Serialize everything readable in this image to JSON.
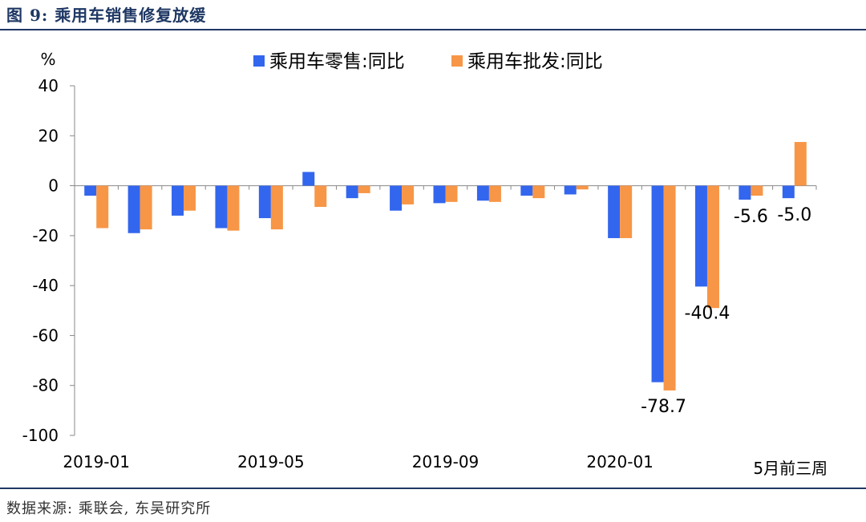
{
  "figure_title": "图 9: 乘用车销售修复放缓",
  "source_note": "数据来源: 乘联会, 东吴研究所",
  "colors": {
    "retail": "#3366ee",
    "wholesale": "#f79646",
    "heading": "#1f3864"
  },
  "chart_data": {
    "type": "bar",
    "title": "",
    "unit_label": "%",
    "xlabel": "",
    "ylabel": "",
    "ylim": [
      -100,
      40
    ],
    "yticks": [
      40,
      20,
      0,
      -20,
      -40,
      -60,
      -80,
      -100
    ],
    "grid": false,
    "legend_position": "top-center",
    "categories": [
      "2019-01",
      "2019-02",
      "2019-03",
      "2019-04",
      "2019-05",
      "2019-06",
      "2019-07",
      "2019-08",
      "2019-09",
      "2019-10",
      "2019-11",
      "2019-12",
      "2020-01",
      "2020-02",
      "2020-03",
      "2020-04",
      "5月前三周"
    ],
    "xtick_labels": [
      {
        "index": 0,
        "text": "2019-01"
      },
      {
        "index": 4,
        "text": "2019-05"
      },
      {
        "index": 8,
        "text": "2019-09"
      },
      {
        "index": 12,
        "text": "2020-01"
      },
      {
        "index": 16,
        "text": "5月前三周"
      }
    ],
    "series": [
      {
        "name": "乘用车零售:同比",
        "color": "#3366ee",
        "values": [
          -4,
          -19,
          -12,
          -17,
          -13,
          5.5,
          -5,
          -10,
          -7,
          -6,
          -4,
          -3.5,
          -21,
          -78.7,
          -40.4,
          -5.6,
          -5.0
        ]
      },
      {
        "name": "乘用车批发:同比",
        "color": "#f79646",
        "values": [
          -17,
          -17.5,
          -10,
          -18,
          -17.5,
          -8.5,
          -3,
          -7.5,
          -6.5,
          -6.5,
          -5,
          -1.5,
          -21,
          -82,
          -49,
          -4,
          17.5
        ]
      }
    ],
    "data_labels": [
      {
        "series": 0,
        "index": 13,
        "text": "-78.7"
      },
      {
        "series": 0,
        "index": 14,
        "text": "-40.4"
      },
      {
        "series": 0,
        "index": 15,
        "text": "-5.6"
      },
      {
        "series": 0,
        "index": 16,
        "text": "-5.0"
      }
    ]
  }
}
